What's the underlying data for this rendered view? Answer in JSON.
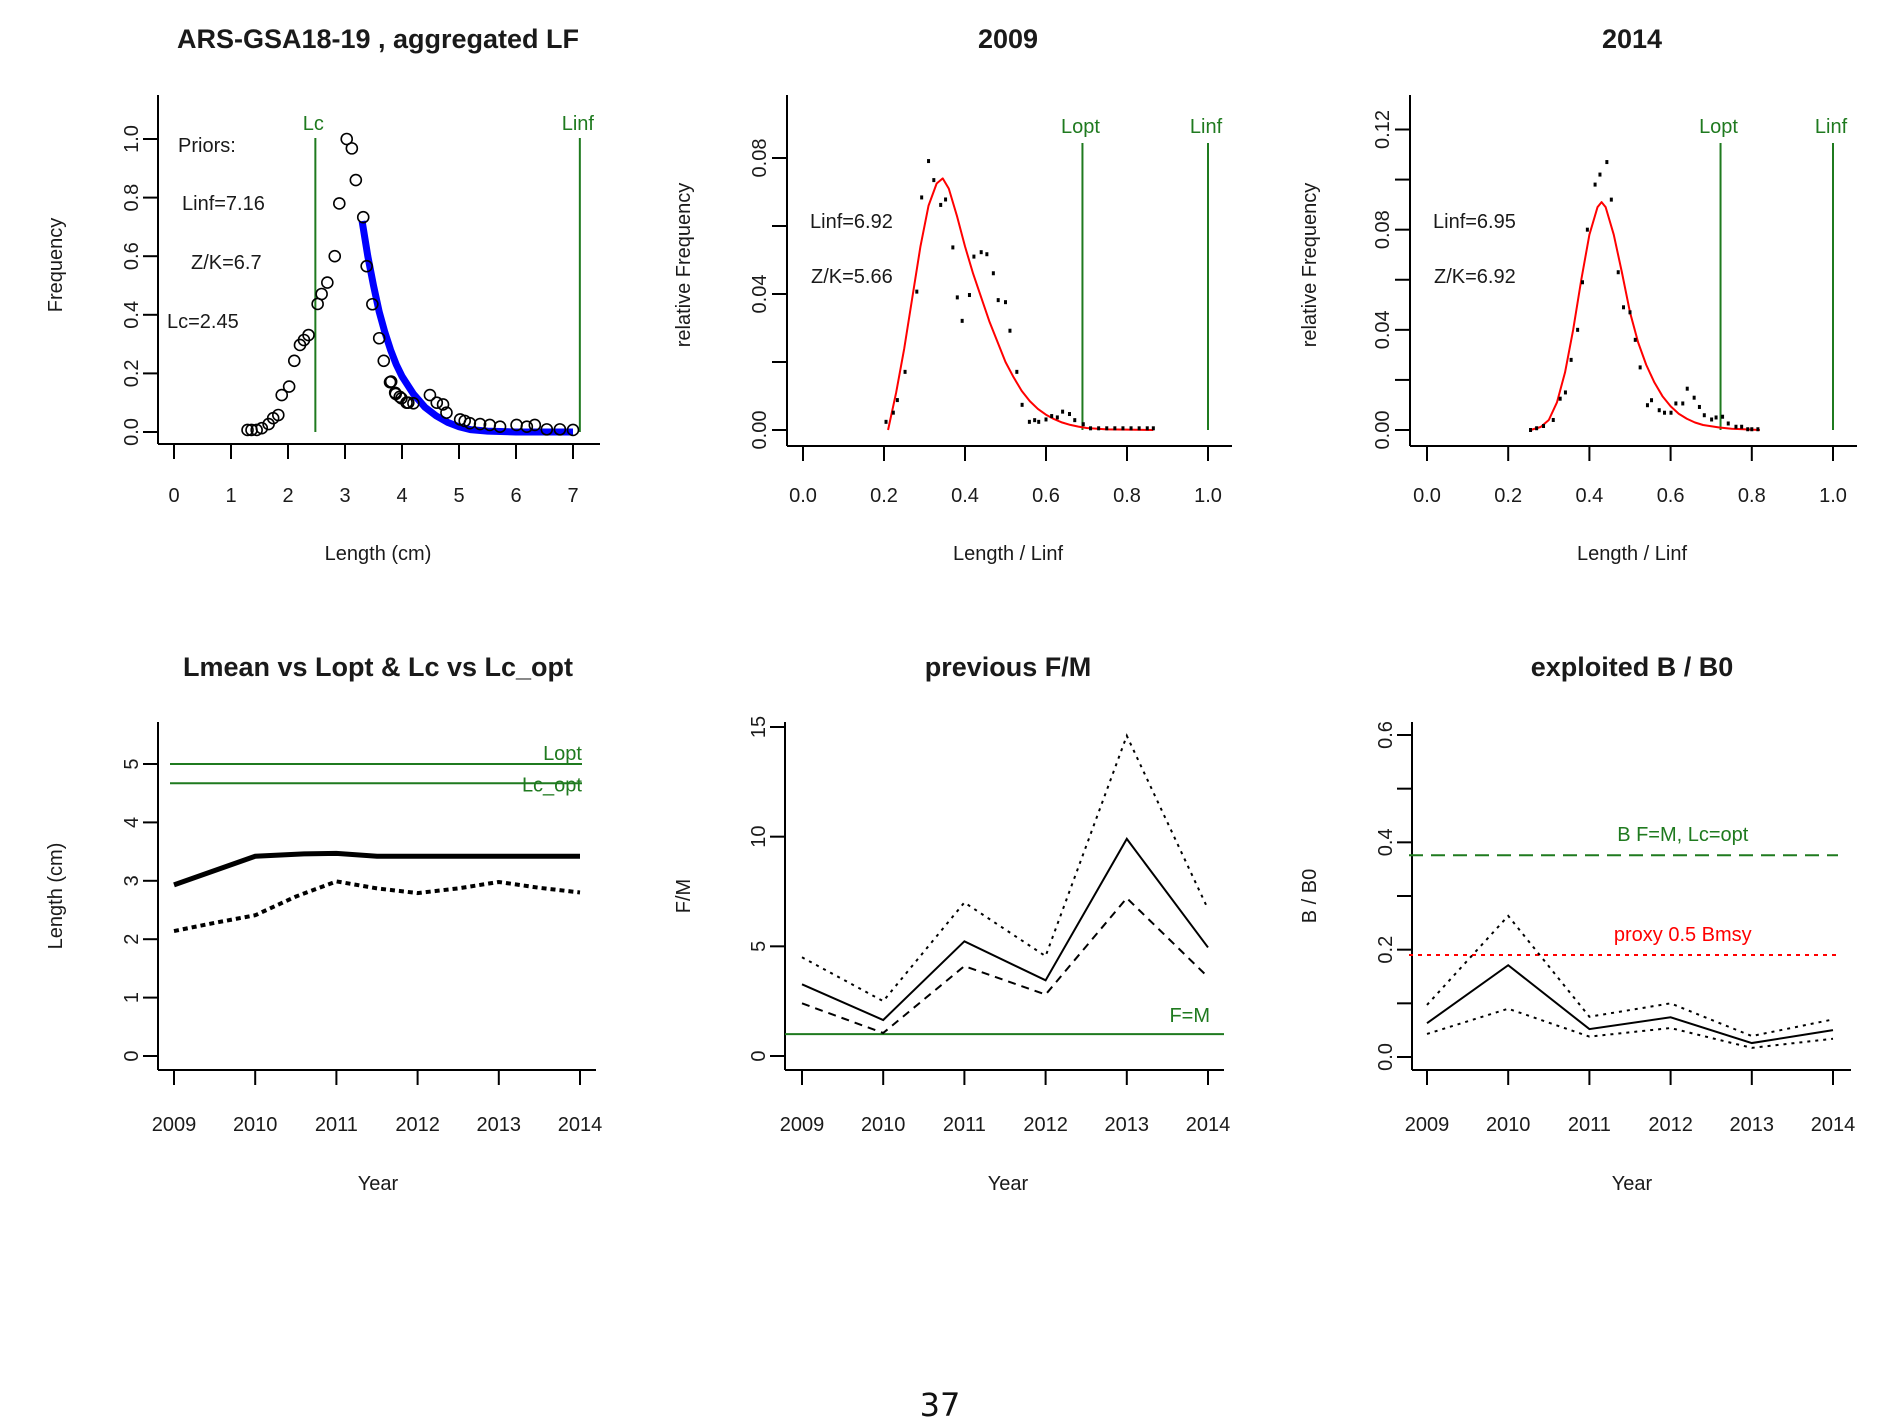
{
  "page": {
    "number": "37"
  },
  "chart_data": [
    {
      "id": "aggregated-lf",
      "type": "scatter",
      "title": "ARS-GSA18-19 , aggregated LF",
      "xlabel": "Length (cm)",
      "ylabel": "Frequency",
      "xlim": [
        0,
        7
      ],
      "ylim": [
        0,
        1.0
      ],
      "xticks": [
        0,
        1,
        2,
        3,
        4,
        5,
        6,
        7
      ],
      "yticks": [
        0.0,
        0.2,
        0.4,
        0.6,
        0.8,
        1.0
      ],
      "ytick_labels": [
        "0.0",
        "0.2",
        "0.4",
        "0.6",
        "0.8",
        "1.0"
      ],
      "annotations": [
        "Priors:",
        "Linf=7.16",
        "Z/K=6.7",
        "Lc=2.45"
      ],
      "vlines": [
        {
          "label": "Lc",
          "x": 2.48,
          "color": "#1f7a1f"
        },
        {
          "label": "Linf",
          "x": 7.12,
          "color": "#1f7a1f"
        }
      ],
      "points": {
        "marker": "open-circle",
        "x": [
          1.29,
          1.36,
          1.45,
          1.54,
          1.66,
          1.74,
          1.83,
          1.89,
          2.02,
          2.11,
          2.21,
          2.28,
          2.36,
          2.52,
          2.59,
          2.69,
          2.82,
          2.9,
          3.03,
          3.12,
          3.19,
          3.32,
          3.38,
          3.48,
          3.6,
          3.68,
          3.79,
          3.81,
          3.88,
          3.89,
          3.96,
          3.99,
          4.08,
          4.11,
          4.2,
          4.49,
          4.61,
          4.72,
          4.78,
          5.02,
          5.1,
          5.19,
          5.37,
          5.54,
          5.72,
          6.01,
          6.19,
          6.33,
          6.54,
          6.77,
          7.0
        ],
        "y": [
          0.007,
          0.007,
          0.007,
          0.013,
          0.027,
          0.047,
          0.058,
          0.126,
          0.155,
          0.243,
          0.297,
          0.314,
          0.331,
          0.437,
          0.471,
          0.51,
          0.6,
          0.78,
          1.0,
          0.968,
          0.86,
          0.733,
          0.566,
          0.436,
          0.32,
          0.243,
          0.17,
          0.172,
          0.134,
          0.13,
          0.12,
          0.115,
          0.1,
          0.1,
          0.098,
          0.126,
          0.1,
          0.094,
          0.066,
          0.043,
          0.038,
          0.03,
          0.027,
          0.024,
          0.018,
          0.024,
          0.018,
          0.024,
          0.009,
          0.009,
          0.007
        ]
      },
      "fit_curve": {
        "color": "#0000ff",
        "x": [
          3.3,
          3.4,
          3.5,
          3.6,
          3.7,
          3.8,
          3.9,
          4.0,
          4.2,
          4.4,
          4.6,
          4.8,
          5.0,
          5.2,
          5.5,
          6.0,
          6.5,
          7.0
        ],
        "y": [
          0.72,
          0.6,
          0.5,
          0.41,
          0.34,
          0.28,
          0.23,
          0.19,
          0.13,
          0.085,
          0.055,
          0.033,
          0.018,
          0.008,
          0.003,
          0.0,
          0.0,
          0.0
        ]
      }
    },
    {
      "id": "lf-2009",
      "type": "scatter",
      "title": "2009",
      "xlabel": "Length / Linf",
      "ylabel": "relative Frequency",
      "xlim": [
        0,
        1.0
      ],
      "ylim": [
        0,
        0.08
      ],
      "xticks": [
        0.0,
        0.2,
        0.4,
        0.6,
        0.8,
        1.0
      ],
      "xtick_labels": [
        "0.0",
        "0.2",
        "0.4",
        "0.6",
        "0.8",
        "1.0"
      ],
      "yticks": [
        0.0,
        0.02,
        0.04,
        0.06,
        0.08
      ],
      "ytick_labels": [
        "0.00",
        "",
        "0.04",
        "",
        "0.08"
      ],
      "annotations": [
        "Linf=6.92",
        "Z/K=5.66"
      ],
      "vlines": [
        {
          "label": "Lopt",
          "x": 0.69,
          "color": "#1f7a1f"
        },
        {
          "label": "Linf",
          "x": 1.0,
          "color": "#1f7a1f"
        }
      ],
      "points": {
        "marker": "dot",
        "x": [
          0.205,
          0.223,
          0.233,
          0.252,
          0.281,
          0.293,
          0.31,
          0.323,
          0.34,
          0.352,
          0.37,
          0.381,
          0.393,
          0.411,
          0.422,
          0.44,
          0.454,
          0.47,
          0.482,
          0.5,
          0.511,
          0.528,
          0.541,
          0.559,
          0.572,
          0.582,
          0.6,
          0.614,
          0.628,
          0.641,
          0.658,
          0.671,
          0.692,
          0.71,
          0.73,
          0.75,
          0.77,
          0.79,
          0.81,
          0.83,
          0.85,
          0.865
        ],
        "y": [
          0.0024,
          0.0051,
          0.0088,
          0.0171,
          0.0407,
          0.0684,
          0.0791,
          0.0735,
          0.0662,
          0.0678,
          0.0537,
          0.039,
          0.0321,
          0.0397,
          0.051,
          0.0523,
          0.0517,
          0.0461,
          0.0382,
          0.0376,
          0.0292,
          0.0171,
          0.0074,
          0.0024,
          0.0029,
          0.0024,
          0.0031,
          0.0041,
          0.0037,
          0.0054,
          0.0047,
          0.0029,
          0.0017,
          0.0005,
          0.0005,
          0.0005,
          0.0005,
          0.0005,
          0.0005,
          0.0005,
          0.0005,
          0.0005
        ]
      },
      "fit_curve": {
        "color": "#ff0000",
        "x": [
          0.21,
          0.23,
          0.25,
          0.27,
          0.29,
          0.31,
          0.33,
          0.345,
          0.36,
          0.38,
          0.4,
          0.42,
          0.44,
          0.46,
          0.48,
          0.5,
          0.52,
          0.54,
          0.56,
          0.58,
          0.6,
          0.62,
          0.64,
          0.66,
          0.68,
          0.7,
          0.75,
          0.8,
          0.865
        ],
        "y": [
          0.0,
          0.011,
          0.024,
          0.039,
          0.054,
          0.066,
          0.0725,
          0.074,
          0.071,
          0.063,
          0.054,
          0.046,
          0.039,
          0.032,
          0.026,
          0.02,
          0.0155,
          0.0115,
          0.0085,
          0.0062,
          0.0045,
          0.0032,
          0.0022,
          0.0015,
          0.001,
          0.0006,
          0.0002,
          0.0001,
          0.0
        ]
      }
    },
    {
      "id": "lf-2014",
      "type": "scatter",
      "title": "2014",
      "xlabel": "Length / Linf",
      "ylabel": "relative Frequency",
      "xlim": [
        0,
        1.0
      ],
      "ylim": [
        0,
        0.12
      ],
      "xticks": [
        0.0,
        0.2,
        0.4,
        0.6,
        0.8,
        1.0
      ],
      "xtick_labels": [
        "0.0",
        "0.2",
        "0.4",
        "0.6",
        "0.8",
        "1.0"
      ],
      "yticks": [
        0.0,
        0.02,
        0.04,
        0.06,
        0.08,
        0.1,
        0.12
      ],
      "ytick_labels": [
        "0.00",
        "",
        "0.04",
        "",
        "0.08",
        "",
        "0.12"
      ],
      "annotations": [
        "Linf=6.95",
        "Z/K=6.92"
      ],
      "vlines": [
        {
          "label": "Lopt",
          "x": 0.723,
          "color": "#1f7a1f"
        },
        {
          "label": "Linf",
          "x": 1.0,
          "color": "#1f7a1f"
        }
      ],
      "points": {
        "marker": "dot",
        "x": [
          0.255,
          0.27,
          0.287,
          0.311,
          0.328,
          0.341,
          0.355,
          0.371,
          0.383,
          0.395,
          0.414,
          0.426,
          0.443,
          0.454,
          0.471,
          0.484,
          0.5,
          0.513,
          0.525,
          0.543,
          0.553,
          0.572,
          0.585,
          0.601,
          0.613,
          0.63,
          0.641,
          0.658,
          0.671,
          0.683,
          0.701,
          0.712,
          0.728,
          0.742,
          0.761,
          0.775,
          0.79,
          0.8,
          0.815
        ],
        "y": [
          0.0,
          0.0007,
          0.0016,
          0.004,
          0.0125,
          0.015,
          0.028,
          0.04,
          0.059,
          0.08,
          0.098,
          0.102,
          0.107,
          0.092,
          0.063,
          0.049,
          0.047,
          0.036,
          0.025,
          0.0099,
          0.0119,
          0.0079,
          0.0069,
          0.0069,
          0.0106,
          0.0106,
          0.0165,
          0.0129,
          0.0092,
          0.0059,
          0.0042,
          0.005,
          0.0053,
          0.0026,
          0.0013,
          0.0013,
          0.0003,
          0.0003,
          0.0003
        ]
      },
      "fit_curve": {
        "color": "#ff0000",
        "x": [
          0.255,
          0.28,
          0.3,
          0.32,
          0.34,
          0.36,
          0.38,
          0.4,
          0.42,
          0.43,
          0.44,
          0.46,
          0.48,
          0.5,
          0.52,
          0.54,
          0.56,
          0.58,
          0.6,
          0.62,
          0.64,
          0.66,
          0.68,
          0.7,
          0.72,
          0.75,
          0.78,
          0.82
        ],
        "y": [
          0.0,
          0.0012,
          0.004,
          0.011,
          0.023,
          0.04,
          0.06,
          0.078,
          0.089,
          0.091,
          0.089,
          0.078,
          0.063,
          0.047,
          0.035,
          0.026,
          0.019,
          0.0135,
          0.0095,
          0.0065,
          0.0045,
          0.003,
          0.002,
          0.0015,
          0.001,
          0.0005,
          0.0003,
          0.0
        ]
      }
    },
    {
      "id": "lmean-lopt",
      "type": "line",
      "title": "Lmean vs Lopt & Lc vs Lc_opt",
      "xlabel": "Year",
      "ylabel": "Length (cm)",
      "xlim": [
        2009,
        2014
      ],
      "ylim": [
        0,
        5
      ],
      "x": [
        2009,
        2010,
        2011,
        2012,
        2013,
        2014
      ],
      "xtick_labels": [
        "2009",
        "2010",
        "2011",
        "2012",
        "2013",
        "2014"
      ],
      "yticks": [
        0,
        1,
        2,
        3,
        4,
        5
      ],
      "ytick_labels": [
        "0",
        "1",
        "2",
        "3",
        "4",
        "5"
      ],
      "series": [
        {
          "name": "Lmean",
          "style": "solid-thick",
          "x": [
            2009,
            2010,
            2010.6,
            2011,
            2011.5,
            2012,
            2013,
            2014
          ],
          "values": [
            2.93,
            3.42,
            3.46,
            3.47,
            3.42,
            3.42,
            3.42,
            3.42
          ]
        },
        {
          "name": "Lc",
          "style": "dotted-thick",
          "x": [
            2009,
            2009.5,
            2010,
            2010.5,
            2011,
            2011.5,
            2012,
            2012.5,
            2013,
            2013.5,
            2014
          ],
          "values": [
            2.14,
            2.28,
            2.41,
            2.73,
            2.99,
            2.87,
            2.79,
            2.87,
            2.98,
            2.88,
            2.8
          ]
        }
      ],
      "hlines": [
        {
          "label": "Lopt",
          "y": 5.0,
          "color": "#1f7a1f"
        },
        {
          "label": "Lc_opt",
          "y": 4.67,
          "color": "#1f7a1f"
        }
      ]
    },
    {
      "id": "previous-fm",
      "type": "line",
      "title": "previous F/M",
      "xlabel": "Year",
      "ylabel": "F/M",
      "xlim": [
        2009,
        2014
      ],
      "ylim": [
        0,
        15
      ],
      "x": [
        2009,
        2010,
        2011,
        2012,
        2013,
        2014
      ],
      "xtick_labels": [
        "2009",
        "2010",
        "2011",
        "2012",
        "2013",
        "2014"
      ],
      "yticks": [
        0,
        5,
        10,
        15
      ],
      "ytick_labels": [
        "0",
        "5",
        "10",
        "15"
      ],
      "series": [
        {
          "name": "F/M",
          "style": "solid",
          "values": [
            3.27,
            1.64,
            5.23,
            3.45,
            9.9,
            4.95
          ]
        },
        {
          "name": "upper",
          "style": "dotted",
          "values": [
            4.5,
            2.5,
            7.0,
            4.55,
            14.6,
            6.7
          ]
        },
        {
          "name": "lower",
          "style": "dashed",
          "values": [
            2.4,
            1.05,
            4.1,
            2.8,
            7.2,
            3.6
          ]
        }
      ],
      "hlines": [
        {
          "label": "F=M",
          "y": 1.0,
          "color": "#1f7a1f"
        }
      ]
    },
    {
      "id": "exploited-b-b0",
      "type": "line",
      "title": "exploited B / B0",
      "xlabel": "Year",
      "ylabel": "B / B0",
      "xlim": [
        2009,
        2014
      ],
      "ylim": [
        0,
        0.6
      ],
      "x": [
        2009,
        2010,
        2011,
        2012,
        2013,
        2014
      ],
      "xtick_labels": [
        "2009",
        "2010",
        "2011",
        "2012",
        "2013",
        "2014"
      ],
      "yticks": [
        0.0,
        0.1,
        0.2,
        0.3,
        0.4,
        0.5,
        0.6
      ],
      "ytick_labels": [
        "0.0",
        "",
        "0.2",
        "",
        "0.4",
        "",
        "0.6"
      ],
      "series": [
        {
          "name": "B/B0",
          "style": "solid",
          "values": [
            0.063,
            0.171,
            0.052,
            0.074,
            0.026,
            0.05
          ]
        },
        {
          "name": "upper",
          "style": "dotted",
          "values": [
            0.097,
            0.263,
            0.075,
            0.1,
            0.039,
            0.07
          ]
        },
        {
          "name": "lower",
          "style": "dotted",
          "values": [
            0.043,
            0.09,
            0.038,
            0.054,
            0.017,
            0.034
          ]
        }
      ],
      "hlines": [
        {
          "label": "B F=M, Lc=opt",
          "y": 0.376,
          "color": "#1f7a1f",
          "style": "dashed"
        },
        {
          "label": "proxy 0.5 Bmsy",
          "y": 0.19,
          "color": "#ff0000",
          "style": "dotted"
        }
      ]
    }
  ]
}
